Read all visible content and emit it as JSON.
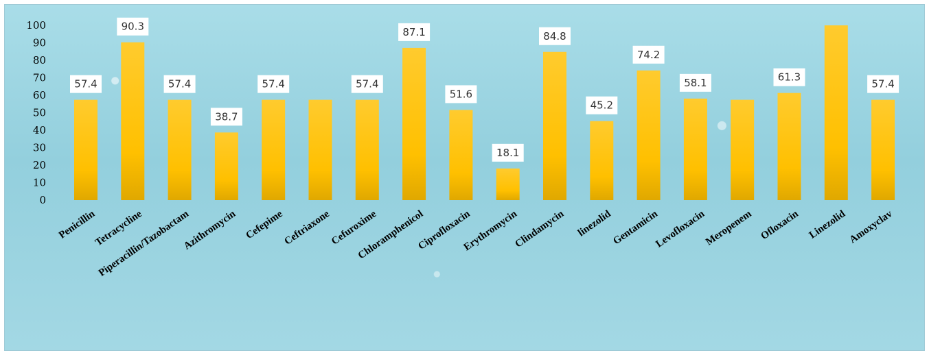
{
  "chart_data": {
    "type": "bar",
    "categories": [
      "Penicillin",
      "Tetracycline",
      "Piperacillin/Tazobactam",
      "Azithromycin",
      "Cefepime",
      "Ceftriaxone",
      "Cefuroxime",
      "Chloramphenicol",
      "Ciprofloxacin",
      "Erythromycin",
      "Clindamycin",
      "linezolid",
      "Gentamicin",
      "Levofloxacin",
      "Meropenem",
      "Ofloxacin",
      "Linezolid",
      "Amoxyclav"
    ],
    "values": [
      57.4,
      90.3,
      57.4,
      38.7,
      57.4,
      57.4,
      57.4,
      87.1,
      51.6,
      18.1,
      84.8,
      45.2,
      74.2,
      58.1,
      57.4,
      61.3,
      100,
      57.4
    ],
    "data_labels": [
      "57.4",
      "90.3",
      "57.4",
      "38.7",
      "57.4",
      null,
      "57.4",
      "87.1",
      "51.6",
      "18.1",
      "84.8",
      "45.2",
      "74.2",
      "58.1",
      null,
      "61.3",
      null,
      "57.4"
    ],
    "title": "",
    "xlabel": "",
    "ylabel": "",
    "ylim": [
      0,
      100
    ],
    "yticks": [
      0,
      10,
      20,
      30,
      40,
      50,
      60,
      70,
      80,
      90,
      100
    ],
    "grid": false,
    "bar_color": "#FFC000",
    "bar_color_dark": "#E6A500"
  }
}
